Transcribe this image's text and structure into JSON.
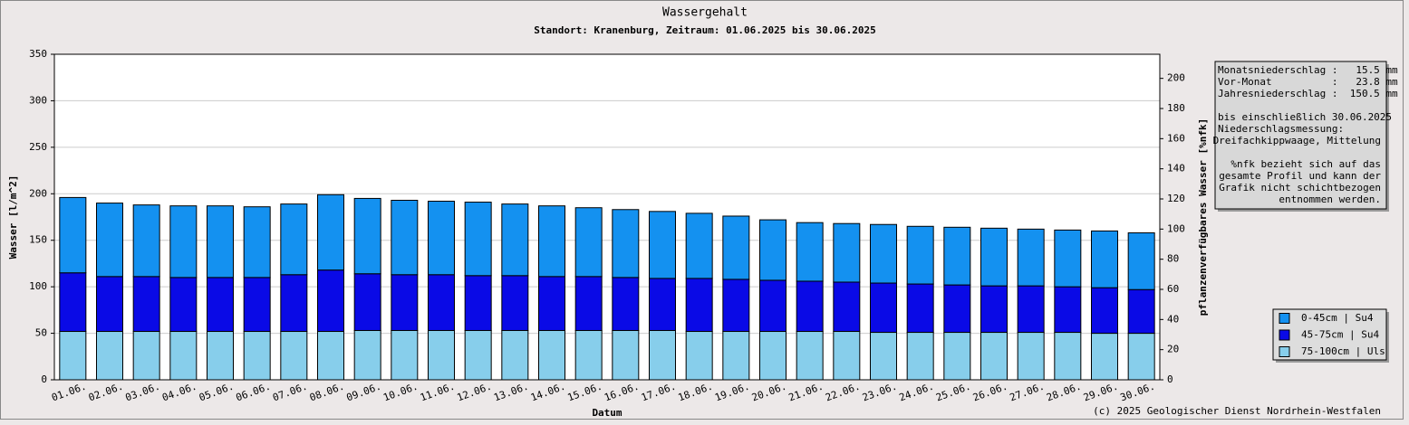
{
  "chart_data": {
    "type": "bar",
    "stacked": true,
    "title": "Wassergehalt",
    "subtitle": "Standort: Kranenburg, Zeitraum: 01.06.2025 bis 30.06.2025",
    "x_label": "Datum",
    "y_label": "Wasser [l/m^2]",
    "y2_label": "pflanzenverfügbares Wasser [%nfk]",
    "categories": [
      "01.06.",
      "02.06.",
      "03.06.",
      "04.06.",
      "05.06.",
      "06.06.",
      "07.06.",
      "08.06.",
      "09.06.",
      "10.06.",
      "11.06.",
      "12.06.",
      "13.06.",
      "14.06.",
      "15.06.",
      "16.06.",
      "17.06.",
      "18.06.",
      "19.06.",
      "20.06.",
      "21.06.",
      "22.06.",
      "23.06.",
      "24.06.",
      "25.06.",
      "26.06.",
      "27.06.",
      "28.06.",
      "29.06.",
      "30.06."
    ],
    "series": [
      {
        "name": "0-45cm | Su4",
        "color": "#1491f0",
        "values": [
          81,
          79,
          77,
          77,
          77,
          76,
          76,
          81,
          81,
          80,
          79,
          79,
          77,
          76,
          74,
          73,
          72,
          70,
          68,
          65,
          63,
          63,
          63,
          62,
          62,
          62,
          61,
          61,
          61,
          61
        ]
      },
      {
        "name": "45-75cm | Su4",
        "color": "#0a0ae6",
        "values": [
          63,
          59,
          59,
          58,
          58,
          58,
          61,
          66,
          61,
          60,
          60,
          59,
          59,
          58,
          58,
          57,
          56,
          57,
          56,
          55,
          54,
          53,
          53,
          52,
          51,
          50,
          50,
          49,
          49,
          47
        ]
      },
      {
        "name": "75-100cm | Uls",
        "color": "#87ceeb",
        "values": [
          52,
          52,
          52,
          52,
          52,
          52,
          52,
          52,
          53,
          53,
          53,
          53,
          53,
          53,
          53,
          53,
          53,
          52,
          52,
          52,
          52,
          52,
          51,
          51,
          51,
          51,
          51,
          51,
          50,
          50
        ]
      }
    ],
    "ylim": [
      0,
      350
    ],
    "yticks": [
      0,
      50,
      100,
      150,
      200,
      250,
      300,
      350
    ],
    "y2lim": [
      0,
      216
    ],
    "y2ticks": [
      0,
      20,
      40,
      60,
      80,
      100,
      120,
      140,
      160,
      180,
      200
    ],
    "grid": true,
    "legend": "lower-right",
    "info": {
      "precipitation": [
        "Monatsniederschlag :   15.5 mm",
        "Vor-Monat          :   23.8 mm",
        "Jahresniederschlag :  150.5 mm"
      ],
      "measurement": [
        "bis einschließlich 30.06.2025",
        "Niederschlagsmessung:"
      ],
      "method": "Dreifachkippwaage, Mittelung",
      "note": [
        "%nfk bezieht sich auf das",
        "gesamte Profil und kann der",
        "Grafik nicht schichtbezogen",
        "entnommen werden."
      ]
    },
    "copyright": "(c) 2025 Geologischer Dienst Nordrhein-Westfalen"
  }
}
